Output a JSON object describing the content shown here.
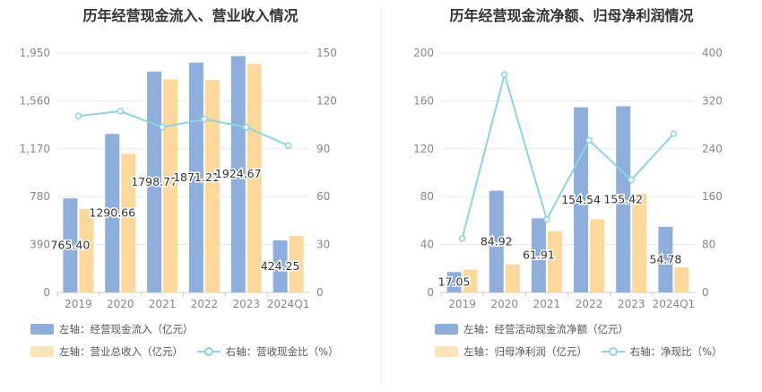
{
  "colors": {
    "bar1": "#8eaedc",
    "bar2": "#fcd99a",
    "line": "#8ad6dc",
    "grid": "#e6e8ee",
    "axis": "#888888"
  },
  "left": {
    "title": "历年经营现金流入、营业收入情况",
    "legend": {
      "bar1": "左轴：经营现金流入（亿元）",
      "bar2": "左轴：营业总收入（亿元）",
      "line": "右轴：营收现金比（%）"
    }
  },
  "right": {
    "title": "历年经营现金流净额、归母净利润情况",
    "legend": {
      "bar1": "左轴：经营活动现金流净额（亿元）",
      "bar2": "左轴：归母净利润（亿元）",
      "line": "右轴：净现比（%）"
    }
  },
  "chart_data": [
    {
      "type": "bar",
      "categories": [
        "2019",
        "2020",
        "2021",
        "2022",
        "2023",
        "2024Q1"
      ],
      "ylim": [
        0,
        1950
      ],
      "yticks": [
        "0",
        "390",
        "780",
        "1,170",
        "1,560",
        "1,950"
      ],
      "y2lim": [
        0,
        150
      ],
      "y2ticks": [
        "0",
        "30",
        "60",
        "90",
        "120",
        "150"
      ],
      "series": [
        {
          "name": "左轴：经营现金流入（亿元）",
          "axis": "left",
          "kind": "bar",
          "values": [
            765.4,
            1290.66,
            1798.77,
            1871.21,
            1924.67,
            424.25
          ],
          "labels": [
            "765.40",
            "1290.66",
            "1798.77",
            "1871.21",
            "1924.67",
            "424.25"
          ]
        },
        {
          "name": "左轴：营业总收入（亿元）",
          "axis": "left",
          "kind": "bar",
          "values": [
            680,
            1130,
            1735,
            1730,
            1860,
            460
          ]
        },
        {
          "name": "右轴：营收现金比（%）",
          "axis": "right",
          "kind": "line",
          "values": [
            110.5,
            113.5,
            103.5,
            108.5,
            103.5,
            92
          ]
        }
      ]
    },
    {
      "type": "bar",
      "categories": [
        "2019",
        "2020",
        "2021",
        "2022",
        "2023",
        "2024Q1"
      ],
      "ylim": [
        0,
        200
      ],
      "yticks": [
        "0",
        "40",
        "80",
        "120",
        "160",
        "200"
      ],
      "y2lim": [
        0,
        400
      ],
      "y2ticks": [
        "0",
        "80",
        "160",
        "240",
        "320",
        "400"
      ],
      "series": [
        {
          "name": "左轴：经营活动现金流净额（亿元）",
          "axis": "left",
          "kind": "bar",
          "values": [
            17.05,
            84.92,
            61.91,
            154.54,
            155.42,
            54.78
          ],
          "labels": [
            "17.05",
            "84.92",
            "61.91",
            "154.54",
            "155.42",
            "54.78"
          ]
        },
        {
          "name": "左轴：归母净利润（亿元）",
          "axis": "left",
          "kind": "bar",
          "values": [
            19,
            23.5,
            51,
            61,
            82.5,
            21
          ]
        },
        {
          "name": "右轴：净现比（%）",
          "axis": "right",
          "kind": "line",
          "values": [
            90,
            364,
            122,
            254,
            188,
            265
          ]
        }
      ]
    }
  ]
}
